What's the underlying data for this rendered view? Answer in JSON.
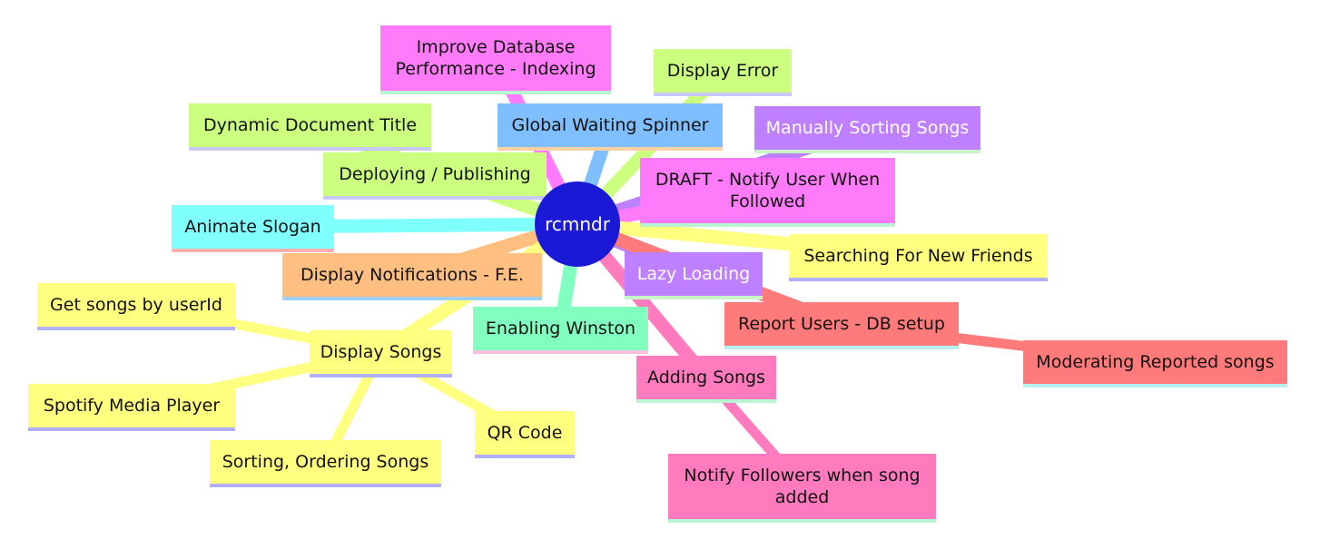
{
  "root": {
    "label": "rcmndr",
    "color": "#1a1ad6"
  },
  "nodes": [
    {
      "id": "improve-db",
      "lines": [
        "Improve Database",
        "Performance - Indexing"
      ],
      "color": "#ff7bf9",
      "under": "#b7f5d2"
    },
    {
      "id": "display-error",
      "lines": [
        "Display Error"
      ],
      "color": "#ccff80",
      "under": "#c9c9ff"
    },
    {
      "id": "global-spinner",
      "lines": [
        "Global Waiting Spinner"
      ],
      "color": "#80bfff",
      "under": "#ffd0a0"
    },
    {
      "id": "dynamic-title",
      "lines": [
        "Dynamic Document Title"
      ],
      "color": "#ccff80",
      "under": "#c9c9ff"
    },
    {
      "id": "manual-sort",
      "lines": [
        "Manually Sorting Songs"
      ],
      "color": "#bf80ff",
      "under": "#c8f5c8",
      "light": true
    },
    {
      "id": "deploying",
      "lines": [
        "Deploying / Publishing"
      ],
      "color": "#ccff80",
      "under": "#c9c9ff"
    },
    {
      "id": "draft-notify",
      "lines": [
        "DRAFT - Notify User When",
        "Followed"
      ],
      "color": "#ff7bf9",
      "under": "#b7f5d2"
    },
    {
      "id": "animate-slogan",
      "lines": [
        "Animate Slogan"
      ],
      "color": "#80ffff",
      "under": "#ffb0b0"
    },
    {
      "id": "search-friends",
      "lines": [
        "Searching For New Friends"
      ],
      "color": "#ffff80",
      "under": "#b0b0ff"
    },
    {
      "id": "display-notif",
      "lines": [
        "Display Notifications - F.E."
      ],
      "color": "#ffbf80",
      "under": "#a0d0ff"
    },
    {
      "id": "lazy-loading",
      "lines": [
        "Lazy Loading"
      ],
      "color": "#bf80ff",
      "under": "#c8f5c8",
      "light": true
    },
    {
      "id": "get-songs",
      "lines": [
        "Get songs by userId"
      ],
      "color": "#ffff80",
      "under": "#b0b0ff"
    },
    {
      "id": "enabling-winston",
      "lines": [
        "Enabling Winston"
      ],
      "color": "#80ffbf",
      "under": "#ffc0e0"
    },
    {
      "id": "report-users",
      "lines": [
        "Report Users - DB setup"
      ],
      "color": "#ff7a7a",
      "under": "#b8f0f0"
    },
    {
      "id": "display-songs",
      "lines": [
        "Display Songs"
      ],
      "color": "#ffff80",
      "under": "#b0b0ff"
    },
    {
      "id": "moderating",
      "lines": [
        "Moderating Reported songs"
      ],
      "color": "#ff7a7a",
      "under": "#b8f0f0"
    },
    {
      "id": "adding-songs",
      "lines": [
        "Adding Songs"
      ],
      "color": "#ff7bbd",
      "under": "#b8f5d0"
    },
    {
      "id": "spotify-player",
      "lines": [
        "Spotify Media Player"
      ],
      "color": "#ffff80",
      "under": "#b0b0ff"
    },
    {
      "id": "qr-code",
      "lines": [
        "QR Code"
      ],
      "color": "#ffff80",
      "under": "#b0b0ff"
    },
    {
      "id": "sorting-songs",
      "lines": [
        "Sorting, Ordering Songs"
      ],
      "color": "#ffff80",
      "under": "#b0b0ff"
    },
    {
      "id": "notify-followers",
      "lines": [
        "Notify Followers when song",
        "added"
      ],
      "color": "#ff7bbd",
      "under": "#b8f5d0"
    }
  ],
  "edges": [
    {
      "from": "root",
      "to": "improve-db",
      "color": "#ff7bf9"
    },
    {
      "from": "root",
      "to": "display-error",
      "color": "#ccff80"
    },
    {
      "from": "root",
      "to": "global-spinner",
      "color": "#80bfff"
    },
    {
      "from": "root",
      "to": "dynamic-title",
      "color": "#ccff80"
    },
    {
      "from": "root",
      "to": "manual-sort",
      "color": "#bf80ff"
    },
    {
      "from": "root",
      "to": "deploying",
      "color": "#ccff80"
    },
    {
      "from": "root",
      "to": "draft-notify",
      "color": "#ff7bf9"
    },
    {
      "from": "root",
      "to": "animate-slogan",
      "color": "#80ffff"
    },
    {
      "from": "root",
      "to": "search-friends",
      "color": "#ffff80"
    },
    {
      "from": "root",
      "to": "display-notif",
      "color": "#ffbf80"
    },
    {
      "from": "root",
      "to": "lazy-loading",
      "color": "#bf80ff"
    },
    {
      "from": "root",
      "to": "enabling-winston",
      "color": "#80ffbf"
    },
    {
      "from": "root",
      "to": "report-users",
      "color": "#ff7a7a"
    },
    {
      "from": "root",
      "to": "display-songs",
      "color": "#ffff80"
    },
    {
      "from": "root",
      "to": "adding-songs",
      "color": "#ff7bbd"
    },
    {
      "from": "report-users",
      "to": "moderating",
      "color": "#ff7a7a"
    },
    {
      "from": "display-songs",
      "to": "get-songs",
      "color": "#ffff80"
    },
    {
      "from": "display-songs",
      "to": "spotify-player",
      "color": "#ffff80"
    },
    {
      "from": "display-songs",
      "to": "qr-code",
      "color": "#ffff80"
    },
    {
      "from": "display-songs",
      "to": "sorting-songs",
      "color": "#ffff80"
    },
    {
      "from": "adding-songs",
      "to": "notify-followers",
      "color": "#ff7bbd"
    }
  ]
}
